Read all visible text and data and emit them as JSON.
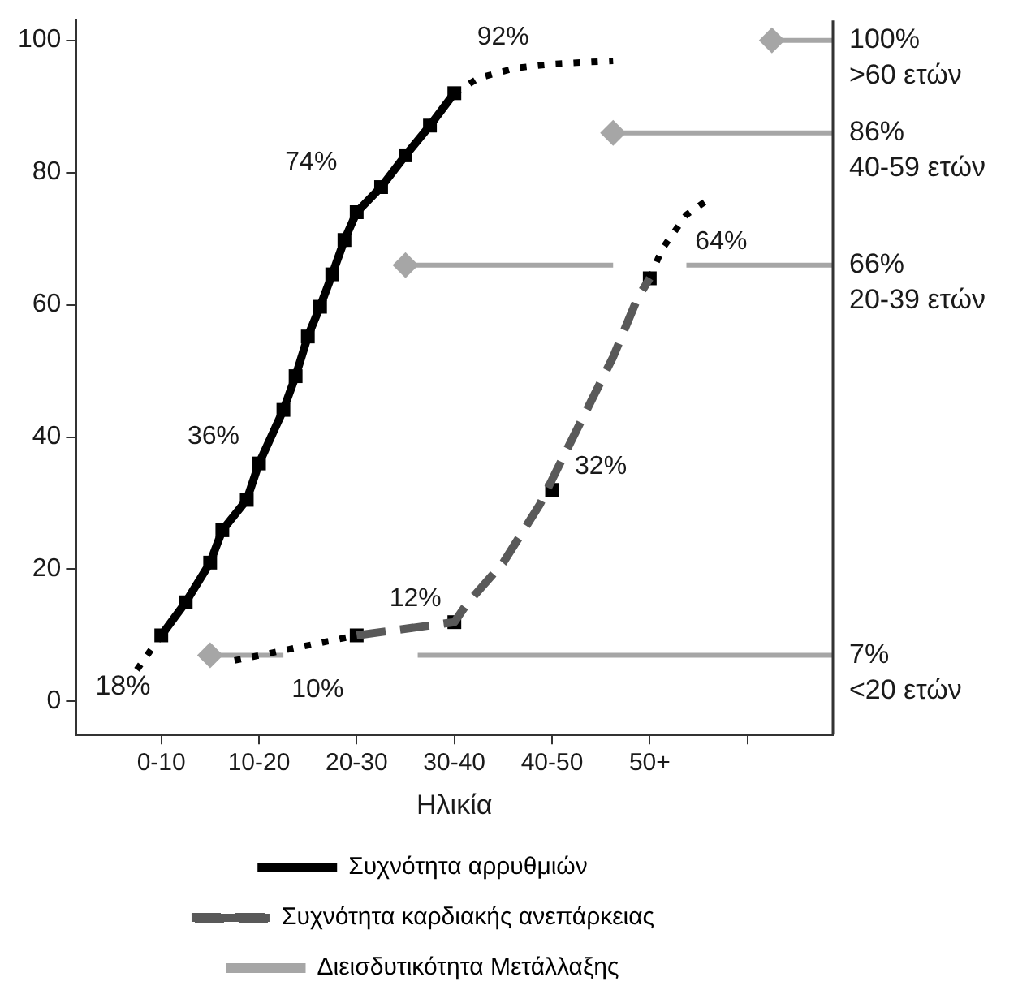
{
  "chart_data": {
    "type": "line",
    "xlabel": "Ηλικία",
    "ylim": [
      -5,
      103
    ],
    "yticks": [
      0,
      20,
      40,
      60,
      80,
      100
    ],
    "grid": false,
    "legend": "bottom",
    "categories": [
      null,
      null,
      null,
      null,
      null,
      null,
      null,
      "0-10",
      null,
      null,
      null,
      null,
      null,
      null,
      null,
      "10-20",
      null,
      null,
      null,
      null,
      null,
      null,
      null,
      "20-30",
      null,
      null,
      null,
      null,
      null,
      null,
      null,
      "30-40",
      null,
      null,
      null,
      null,
      null,
      null,
      null,
      "40-50",
      null,
      null,
      null,
      null,
      null,
      null,
      null,
      "50+",
      null,
      null,
      null,
      null,
      null,
      null,
      null,
      null,
      null,
      null,
      null,
      null,
      null,
      null,
      null
    ],
    "series": [
      {
        "type": "line",
        "name": "Συχνότητα αρρυθμιών",
        "color": "#000000",
        "marker": "square",
        "line_style": "solid",
        "values": [
          null,
          null,
          null,
          null,
          null,
          null,
          null,
          10,
          null,
          15,
          null,
          21,
          25.9,
          null,
          30.5,
          36,
          null,
          44.1,
          49.2,
          55.2,
          59.7,
          64.6,
          69.8,
          74,
          null,
          77.8,
          null,
          82.6,
          null,
          87.1,
          null,
          92,
          null,
          null,
          null,
          null,
          null,
          null,
          null,
          null,
          null,
          null,
          null,
          null,
          null,
          null,
          null,
          null,
          null,
          null,
          null,
          null,
          null,
          null,
          null,
          null,
          null,
          null,
          null,
          null,
          null,
          null,
          null
        ],
        "value_labels": [
          null,
          null,
          null,
          null,
          null,
          null,
          null,
          null,
          null,
          null,
          null,
          null,
          null,
          null,
          null,
          "36%",
          null,
          null,
          null,
          null,
          null,
          null,
          null,
          "74%",
          null,
          null,
          null,
          null,
          null,
          null,
          null,
          "92%",
          null,
          null,
          null,
          null,
          null,
          null,
          null,
          null,
          null,
          null,
          null,
          null,
          null,
          null,
          null,
          null,
          null,
          null,
          null,
          null,
          null,
          null,
          null,
          null,
          null,
          null,
          null,
          null,
          null,
          null,
          null
        ]
      },
      {
        "type": "line",
        "color": "#000000",
        "marker": "none",
        "line_style": "dotted",
        "values": [
          null,
          null,
          null,
          null,
          null,
          4.8,
          null,
          10,
          null,
          null,
          null,
          null,
          null,
          null,
          null,
          null,
          null,
          null,
          null,
          null,
          null,
          null,
          null,
          null,
          null,
          null,
          null,
          null,
          null,
          null,
          null,
          null,
          null,
          null,
          null,
          null,
          null,
          null,
          null,
          null,
          null,
          null,
          null,
          null,
          null,
          null,
          null,
          null,
          null,
          null,
          null,
          null,
          null,
          null,
          null,
          null,
          null,
          null,
          null,
          null,
          null,
          null,
          null
        ]
      },
      {
        "type": "line",
        "color": "#000000",
        "marker": "none",
        "line_style": "dotted",
        "values": [
          null,
          null,
          null,
          null,
          null,
          null,
          null,
          null,
          null,
          null,
          null,
          null,
          null,
          null,
          null,
          null,
          null,
          null,
          null,
          null,
          null,
          null,
          null,
          null,
          null,
          null,
          null,
          null,
          null,
          null,
          null,
          92,
          null,
          94.3,
          null,
          null,
          95.8,
          null,
          null,
          96.4,
          null,
          null,
          null,
          null,
          96.9,
          null,
          null,
          null,
          null,
          null,
          null,
          null,
          null,
          null,
          null,
          null,
          null,
          null,
          null,
          null,
          null,
          null,
          null
        ]
      },
      {
        "type": "line",
        "name": "Συχνότητα καρδιακής ανεπάρκειας",
        "color": "#595959",
        "marker": "none",
        "line_style": "dashed",
        "values": [
          null,
          null,
          null,
          null,
          null,
          null,
          null,
          null,
          null,
          null,
          null,
          null,
          null,
          null,
          null,
          null,
          null,
          null,
          null,
          null,
          null,
          null,
          null,
          10,
          null,
          null,
          null,
          null,
          null,
          null,
          null,
          12,
          14.7,
          null,
          null,
          21,
          null,
          null,
          29.8,
          null,
          37.3,
          null,
          null,
          null,
          52.1,
          null,
          61,
          64,
          null,
          null,
          null,
          null,
          null,
          null,
          null,
          null,
          null,
          null,
          null,
          null,
          null,
          null,
          null
        ]
      },
      {
        "type": "line",
        "color": "#000000",
        "marker": "none",
        "line_style": "dotted",
        "values": [
          null,
          null,
          null,
          null,
          null,
          null,
          null,
          null,
          null,
          null,
          null,
          null,
          null,
          6.2,
          null,
          null,
          null,
          null,
          null,
          null,
          null,
          null,
          null,
          10,
          null,
          null,
          null,
          null,
          null,
          null,
          null,
          null,
          null,
          null,
          null,
          null,
          null,
          null,
          null,
          null,
          null,
          null,
          null,
          null,
          null,
          null,
          null,
          null,
          null,
          null,
          null,
          null,
          null,
          null,
          null,
          null,
          null,
          null,
          null,
          null,
          null,
          null,
          null
        ]
      },
      {
        "type": "line",
        "color": "#000000",
        "marker": "none",
        "line_style": "dotted",
        "values": [
          null,
          null,
          null,
          null,
          null,
          null,
          null,
          null,
          null,
          null,
          null,
          null,
          null,
          null,
          null,
          null,
          null,
          null,
          null,
          null,
          null,
          null,
          null,
          null,
          null,
          null,
          null,
          null,
          null,
          null,
          null,
          null,
          null,
          null,
          null,
          null,
          null,
          null,
          null,
          null,
          null,
          null,
          null,
          null,
          null,
          null,
          null,
          64,
          68.4,
          null,
          73.6,
          null,
          76.2,
          null,
          null,
          null,
          null,
          null,
          null,
          null,
          null,
          null,
          null
        ]
      },
      {
        "type": "scatter",
        "color": "#000000",
        "marker": "square",
        "values": [
          null,
          null,
          null,
          null,
          null,
          null,
          null,
          null,
          null,
          null,
          null,
          null,
          null,
          null,
          null,
          null,
          null,
          null,
          null,
          null,
          null,
          null,
          null,
          10,
          null,
          null,
          null,
          null,
          null,
          null,
          null,
          12,
          null,
          null,
          null,
          null,
          null,
          null,
          null,
          32,
          null,
          null,
          null,
          null,
          null,
          null,
          null,
          64,
          null,
          null,
          null,
          null,
          null,
          null,
          null,
          null,
          null,
          null,
          null,
          null,
          null,
          null,
          null
        ],
        "value_labels": [
          null,
          null,
          null,
          null,
          null,
          null,
          null,
          null,
          null,
          null,
          null,
          null,
          null,
          null,
          null,
          null,
          null,
          null,
          null,
          null,
          null,
          null,
          null,
          "10%",
          null,
          null,
          null,
          null,
          null,
          null,
          null,
          "12%",
          null,
          null,
          null,
          null,
          null,
          null,
          null,
          "32%",
          null,
          null,
          null,
          null,
          null,
          null,
          null,
          "64%",
          null,
          null,
          null,
          null,
          null,
          null,
          null,
          null,
          null,
          null,
          null,
          null,
          null,
          null,
          null
        ]
      },
      {
        "type": "line",
        "name": "Διεισδυτικότητα Μετάλλαξης",
        "color": "#a6a6a6",
        "marker": "diamond",
        "line_style": "solid",
        "values": [
          null,
          null,
          null,
          null,
          null,
          null,
          null,
          null,
          null,
          null,
          null,
          null,
          null,
          null,
          null,
          null,
          null,
          null,
          null,
          null,
          null,
          null,
          null,
          null,
          null,
          null,
          null,
          null,
          null,
          null,
          null,
          null,
          null,
          null,
          null,
          null,
          null,
          null,
          null,
          null,
          null,
          null,
          null,
          null,
          null,
          null,
          null,
          null,
          null,
          null,
          null,
          null,
          null,
          null,
          null,
          null,
          null,
          100,
          null,
          null,
          null,
          null,
          100
        ],
        "value_labels": [
          null,
          null,
          null,
          null,
          null,
          null,
          null,
          null,
          null,
          null,
          null,
          null,
          null,
          null,
          null,
          null,
          null,
          null,
          null,
          null,
          null,
          null,
          null,
          null,
          null,
          null,
          null,
          null,
          null,
          null,
          null,
          null,
          null,
          null,
          null,
          null,
          null,
          null,
          null,
          null,
          null,
          null,
          null,
          null,
          null,
          null,
          null,
          null,
          null,
          null,
          null,
          null,
          null,
          null,
          null,
          null,
          null,
          null,
          null,
          null,
          null,
          null,
          "100%\n>60 ετών"
        ]
      },
      {
        "type": "line",
        "color": "#a6a6a6",
        "marker": "diamond",
        "line_style": "solid",
        "values": [
          null,
          null,
          null,
          null,
          null,
          null,
          null,
          null,
          null,
          null,
          null,
          null,
          null,
          null,
          null,
          null,
          null,
          null,
          null,
          null,
          null,
          null,
          null,
          null,
          null,
          null,
          null,
          null,
          null,
          null,
          null,
          null,
          null,
          null,
          null,
          null,
          null,
          null,
          null,
          null,
          null,
          null,
          null,
          null,
          86,
          null,
          null,
          null,
          null,
          null,
          null,
          null,
          null,
          null,
          null,
          null,
          null,
          null,
          null,
          null,
          null,
          null,
          86
        ],
        "value_labels": [
          null,
          null,
          null,
          null,
          null,
          null,
          null,
          null,
          null,
          null,
          null,
          null,
          null,
          null,
          null,
          null,
          null,
          null,
          null,
          null,
          null,
          null,
          null,
          null,
          null,
          null,
          null,
          null,
          null,
          null,
          null,
          null,
          null,
          null,
          null,
          null,
          null,
          null,
          null,
          null,
          null,
          null,
          null,
          null,
          null,
          null,
          null,
          null,
          null,
          null,
          null,
          null,
          null,
          null,
          null,
          null,
          null,
          null,
          null,
          null,
          null,
          null,
          "86%\n40-59 ετών"
        ]
      },
      {
        "type": "line",
        "color": "#a6a6a6",
        "marker": "diamond",
        "line_style": "solid",
        "values": [
          null,
          null,
          null,
          null,
          null,
          null,
          null,
          null,
          null,
          null,
          null,
          null,
          null,
          null,
          null,
          null,
          null,
          null,
          null,
          null,
          null,
          null,
          null,
          null,
          null,
          null,
          null,
          66,
          null,
          null,
          null,
          null,
          null,
          null,
          null,
          null,
          null,
          null,
          null,
          null,
          null,
          null,
          null,
          null,
          66,
          null,
          null,
          null,
          null,
          null,
          null,
          null,
          null,
          null,
          null,
          null,
          null,
          null,
          null,
          null,
          null,
          null,
          null
        ]
      },
      {
        "type": "line",
        "color": "#a6a6a6",
        "marker": "none",
        "line_style": "solid",
        "values": [
          null,
          null,
          null,
          null,
          null,
          null,
          null,
          null,
          null,
          null,
          null,
          null,
          null,
          null,
          null,
          null,
          null,
          null,
          null,
          null,
          null,
          null,
          null,
          null,
          null,
          null,
          null,
          null,
          null,
          null,
          null,
          null,
          null,
          null,
          null,
          null,
          null,
          null,
          null,
          null,
          null,
          null,
          null,
          null,
          null,
          null,
          null,
          null,
          null,
          null,
          66,
          null,
          null,
          null,
          null,
          null,
          null,
          null,
          null,
          null,
          null,
          null,
          66
        ],
        "value_labels": [
          null,
          null,
          null,
          null,
          null,
          null,
          null,
          null,
          null,
          null,
          null,
          null,
          null,
          null,
          null,
          null,
          null,
          null,
          null,
          null,
          null,
          null,
          null,
          null,
          null,
          null,
          null,
          null,
          null,
          null,
          null,
          null,
          null,
          null,
          null,
          null,
          null,
          null,
          null,
          null,
          null,
          null,
          null,
          null,
          null,
          null,
          null,
          null,
          null,
          null,
          null,
          null,
          null,
          null,
          null,
          null,
          null,
          null,
          null,
          null,
          null,
          null,
          "66%\n20-39 ετών"
        ]
      },
      {
        "type": "line",
        "color": "#a6a6a6",
        "marker": "diamond",
        "line_style": "solid",
        "values": [
          null,
          null,
          null,
          null,
          null,
          null,
          null,
          null,
          null,
          null,
          null,
          7,
          null,
          null,
          null,
          null,
          null,
          7,
          null,
          null,
          null,
          null,
          null,
          null,
          null,
          null,
          null,
          null,
          null,
          null,
          null,
          null,
          null,
          null,
          null,
          null,
          null,
          null,
          null,
          null,
          null,
          null,
          null,
          null,
          null,
          null,
          null,
          null,
          null,
          null,
          null,
          null,
          null,
          null,
          null,
          null,
          null,
          null,
          null,
          null,
          null,
          null,
          null
        ]
      },
      {
        "type": "line",
        "color": "#a6a6a6",
        "marker": "none",
        "line_style": "solid",
        "values": [
          null,
          null,
          null,
          null,
          null,
          null,
          null,
          null,
          null,
          null,
          null,
          null,
          null,
          null,
          null,
          null,
          null,
          null,
          null,
          null,
          null,
          null,
          null,
          null,
          null,
          null,
          null,
          null,
          7,
          null,
          null,
          null,
          null,
          null,
          null,
          null,
          null,
          null,
          null,
          null,
          null,
          null,
          null,
          null,
          null,
          null,
          null,
          null,
          null,
          null,
          null,
          null,
          null,
          null,
          null,
          null,
          null,
          null,
          null,
          null,
          null,
          null,
          7
        ],
        "value_labels": [
          null,
          null,
          null,
          null,
          null,
          null,
          null,
          null,
          null,
          null,
          null,
          null,
          null,
          null,
          null,
          null,
          null,
          null,
          null,
          null,
          null,
          null,
          null,
          null,
          null,
          null,
          null,
          null,
          null,
          null,
          null,
          null,
          null,
          null,
          null,
          null,
          null,
          null,
          null,
          null,
          null,
          null,
          null,
          null,
          null,
          null,
          null,
          null,
          null,
          null,
          null,
          null,
          null,
          null,
          null,
          null,
          null,
          null,
          null,
          null,
          null,
          null,
          "7%\n<20 ετών"
        ]
      }
    ],
    "annotations": [
      "18%"
    ]
  }
}
